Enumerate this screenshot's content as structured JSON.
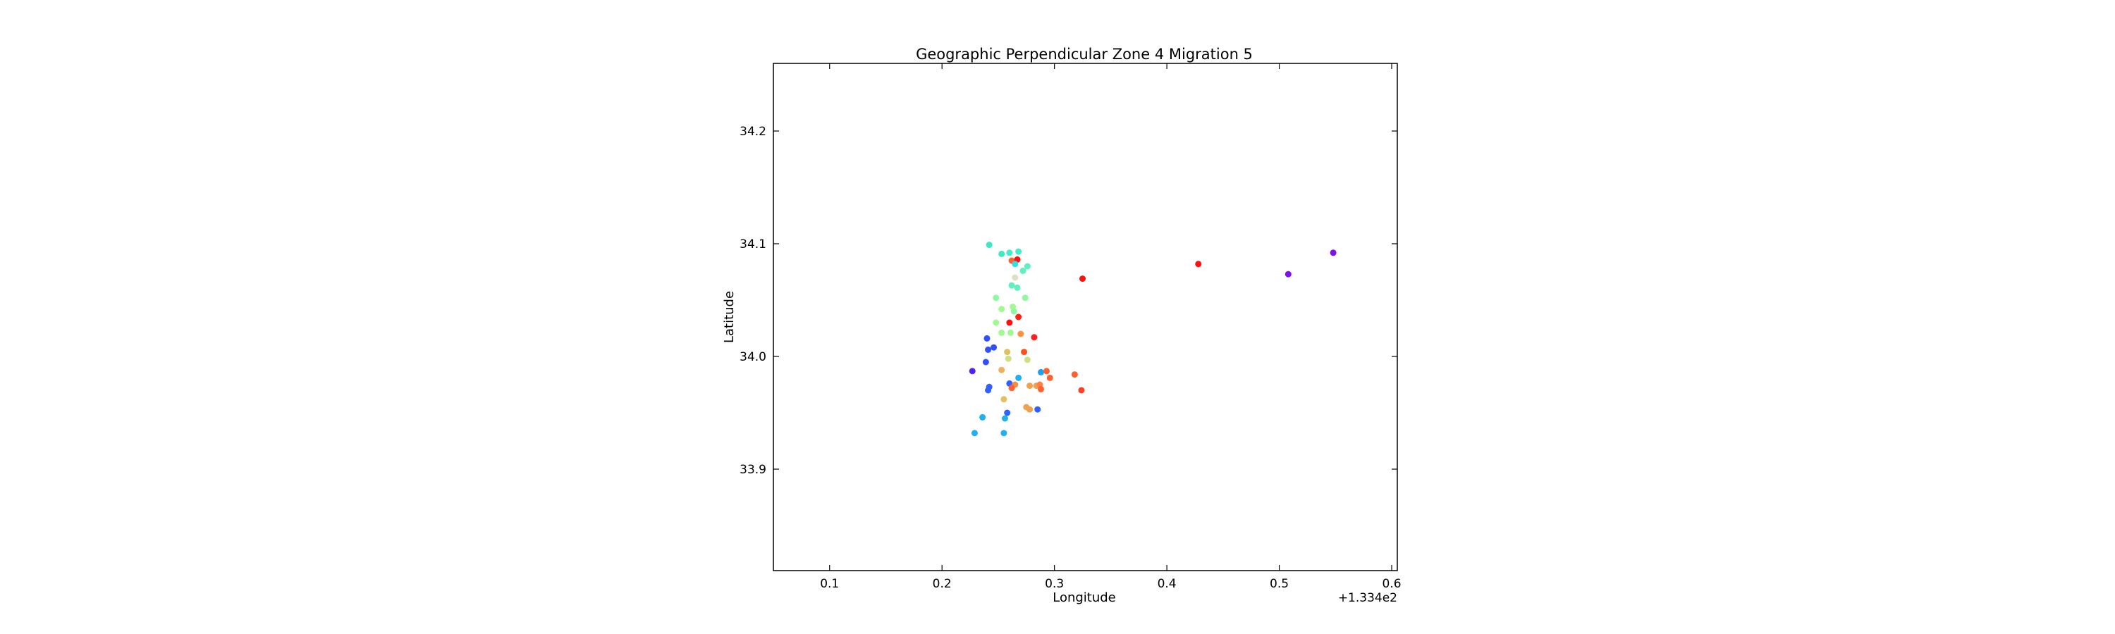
{
  "chart_data": {
    "type": "scatter",
    "title": "Geographic Perpendicular Zone 4 Migration 5",
    "xlabel": "Longitude",
    "ylabel": "Latitude",
    "x_offset_label": "+1.334e2",
    "xlim": [
      133.45,
      134.005
    ],
    "ylim": [
      33.81,
      34.26
    ],
    "x_ticks": [
      133.5,
      133.6,
      133.7,
      133.8,
      133.9,
      134.0
    ],
    "x_tick_labels": [
      "0.1",
      "0.2",
      "0.3",
      "0.4",
      "0.5",
      "0.6"
    ],
    "y_ticks": [
      33.9,
      34.0,
      34.1,
      34.2
    ],
    "y_tick_labels": [
      "33.9",
      "34.0",
      "34.1",
      "34.2"
    ],
    "grid": false,
    "legend": "none",
    "points": [
      {
        "x": 133.642,
        "y": 34.099,
        "color": "#3ee8c0"
      },
      {
        "x": 133.653,
        "y": 34.091,
        "color": "#3ee8c0"
      },
      {
        "x": 133.66,
        "y": 34.092,
        "color": "#44ecc8"
      },
      {
        "x": 133.668,
        "y": 34.093,
        "color": "#44ecc8"
      },
      {
        "x": 133.662,
        "y": 34.085,
        "color": "#ff6030"
      },
      {
        "x": 133.667,
        "y": 34.086,
        "color": "#ff1010"
      },
      {
        "x": 133.665,
        "y": 34.082,
        "color": "#30e0e0"
      },
      {
        "x": 133.676,
        "y": 34.08,
        "color": "#60f0c0"
      },
      {
        "x": 133.672,
        "y": 34.076,
        "color": "#60f0c0"
      },
      {
        "x": 133.665,
        "y": 34.07,
        "color": "#e0e0c0"
      },
      {
        "x": 133.662,
        "y": 34.063,
        "color": "#60f0c0"
      },
      {
        "x": 133.667,
        "y": 34.061,
        "color": "#60f0c0"
      },
      {
        "x": 133.725,
        "y": 34.069,
        "color": "#ff1010"
      },
      {
        "x": 133.828,
        "y": 34.082,
        "color": "#ff1010"
      },
      {
        "x": 133.908,
        "y": 34.073,
        "color": "#8010f0"
      },
      {
        "x": 133.948,
        "y": 34.092,
        "color": "#8010f0"
      },
      {
        "x": 133.648,
        "y": 34.052,
        "color": "#90f8a0"
      },
      {
        "x": 133.674,
        "y": 34.052,
        "color": "#90f8a0"
      },
      {
        "x": 133.653,
        "y": 34.042,
        "color": "#a0fa90"
      },
      {
        "x": 133.663,
        "y": 34.044,
        "color": "#a0fa90"
      },
      {
        "x": 133.664,
        "y": 34.04,
        "color": "#90f8a0"
      },
      {
        "x": 133.668,
        "y": 34.035,
        "color": "#ff2010"
      },
      {
        "x": 133.648,
        "y": 34.03,
        "color": "#a0fa90"
      },
      {
        "x": 133.66,
        "y": 34.03,
        "color": "#ff1010"
      },
      {
        "x": 133.653,
        "y": 34.021,
        "color": "#a0fa90"
      },
      {
        "x": 133.67,
        "y": 34.02,
        "color": "#ff9040"
      },
      {
        "x": 133.661,
        "y": 34.021,
        "color": "#a0fa90"
      },
      {
        "x": 133.682,
        "y": 34.017,
        "color": "#ff2020"
      },
      {
        "x": 133.64,
        "y": 34.016,
        "color": "#3050ff"
      },
      {
        "x": 133.641,
        "y": 34.006,
        "color": "#3050ff"
      },
      {
        "x": 133.646,
        "y": 34.008,
        "color": "#3050ff"
      },
      {
        "x": 133.673,
        "y": 34.004,
        "color": "#ff5020"
      },
      {
        "x": 133.658,
        "y": 34.004,
        "color": "#e0c060"
      },
      {
        "x": 133.659,
        "y": 33.998,
        "color": "#d0e080"
      },
      {
        "x": 133.676,
        "y": 33.997,
        "color": "#d0e080"
      },
      {
        "x": 133.639,
        "y": 33.995,
        "color": "#3050ff"
      },
      {
        "x": 133.627,
        "y": 33.987,
        "color": "#5020ff"
      },
      {
        "x": 133.653,
        "y": 33.988,
        "color": "#f0b060"
      },
      {
        "x": 133.688,
        "y": 33.986,
        "color": "#20a0f0"
      },
      {
        "x": 133.693,
        "y": 33.987,
        "color": "#ff6030"
      },
      {
        "x": 133.718,
        "y": 33.984,
        "color": "#ff6030"
      },
      {
        "x": 133.696,
        "y": 33.981,
        "color": "#ff6030"
      },
      {
        "x": 133.668,
        "y": 33.981,
        "color": "#20b0f0"
      },
      {
        "x": 133.66,
        "y": 33.976,
        "color": "#3060ff"
      },
      {
        "x": 133.665,
        "y": 33.975,
        "color": "#f09040"
      },
      {
        "x": 133.678,
        "y": 33.974,
        "color": "#f0a050"
      },
      {
        "x": 133.684,
        "y": 33.974,
        "color": "#f0a050"
      },
      {
        "x": 133.687,
        "y": 33.975,
        "color": "#ff8040"
      },
      {
        "x": 133.642,
        "y": 33.973,
        "color": "#3060ff"
      },
      {
        "x": 133.641,
        "y": 33.97,
        "color": "#3060ff"
      },
      {
        "x": 133.662,
        "y": 33.972,
        "color": "#ff6030"
      },
      {
        "x": 133.688,
        "y": 33.971,
        "color": "#ff6030"
      },
      {
        "x": 133.724,
        "y": 33.97,
        "color": "#ff4020"
      },
      {
        "x": 133.655,
        "y": 33.962,
        "color": "#e0c060"
      },
      {
        "x": 133.675,
        "y": 33.955,
        "color": "#f0a050"
      },
      {
        "x": 133.678,
        "y": 33.953,
        "color": "#f0a050"
      },
      {
        "x": 133.685,
        "y": 33.953,
        "color": "#3060ff"
      },
      {
        "x": 133.658,
        "y": 33.95,
        "color": "#3060ff"
      },
      {
        "x": 133.636,
        "y": 33.946,
        "color": "#20b0f0"
      },
      {
        "x": 133.656,
        "y": 33.945,
        "color": "#20b0f0"
      },
      {
        "x": 133.629,
        "y": 33.932,
        "color": "#20b0f0"
      },
      {
        "x": 133.655,
        "y": 33.932,
        "color": "#20b0f0"
      }
    ]
  }
}
